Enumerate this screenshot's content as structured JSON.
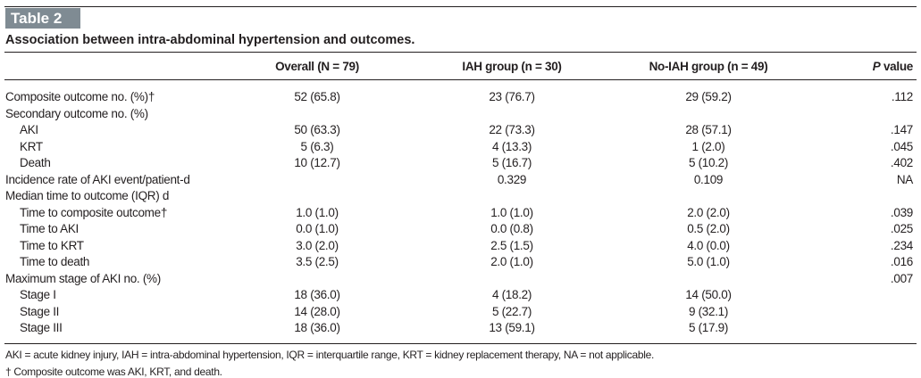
{
  "table_label": "Table 2",
  "title": "Association between intra-abdominal hypertension and outcomes.",
  "columns": {
    "overall": "Overall (N = 79)",
    "iah": "IAH group (n = 30)",
    "no_iah": "No-IAH group (n = 49)",
    "p_italic": "P",
    "p_rest": " value"
  },
  "rows": [
    {
      "label": "Composite outcome no. (%)†",
      "indent": false,
      "overall": "52 (65.8)",
      "iah": "23 (76.7)",
      "no_iah": "29 (59.2)",
      "p": ".112"
    },
    {
      "label": "Secondary outcome no. (%)",
      "indent": false,
      "overall": "",
      "iah": "",
      "no_iah": "",
      "p": ""
    },
    {
      "label": "AKI",
      "indent": true,
      "overall": "50 (63.3)",
      "iah": "22 (73.3)",
      "no_iah": "28 (57.1)",
      "p": ".147"
    },
    {
      "label": "KRT",
      "indent": true,
      "overall": "5 (6.3)",
      "iah": "4 (13.3)",
      "no_iah": "1 (2.0)",
      "p": ".045"
    },
    {
      "label": "Death",
      "indent": true,
      "overall": "10 (12.7)",
      "iah": "5 (16.7)",
      "no_iah": "5 (10.2)",
      "p": ".402"
    },
    {
      "label": "Incidence rate of AKI event/patient-d",
      "indent": false,
      "overall": "",
      "iah": "0.329",
      "no_iah": "0.109",
      "p": "NA"
    },
    {
      "label": "Median time to outcome (IQR) d",
      "indent": false,
      "overall": "",
      "iah": "",
      "no_iah": "",
      "p": ""
    },
    {
      "label": "Time to composite outcome†",
      "indent": true,
      "overall": "1.0 (1.0)",
      "iah": "1.0 (1.0)",
      "no_iah": "2.0 (2.0)",
      "p": ".039"
    },
    {
      "label": "Time to AKI",
      "indent": true,
      "overall": "0.0 (1.0)",
      "iah": "0.0 (0.8)",
      "no_iah": "0.5 (2.0)",
      "p": ".025"
    },
    {
      "label": "Time to KRT",
      "indent": true,
      "overall": "3.0 (2.0)",
      "iah": "2.5 (1.5)",
      "no_iah": "4.0 (0.0)",
      "p": ".234"
    },
    {
      "label": "Time to death",
      "indent": true,
      "overall": "3.5 (2.5)",
      "iah": "2.0 (1.0)",
      "no_iah": "5.0 (1.0)",
      "p": ".016"
    },
    {
      "label": "Maximum stage of AKI no. (%)",
      "indent": false,
      "overall": "",
      "iah": "",
      "no_iah": "",
      "p": ".007"
    },
    {
      "label": "Stage I",
      "indent": true,
      "overall": "18 (36.0)",
      "iah": "4 (18.2)",
      "no_iah": "14 (50.0)",
      "p": ""
    },
    {
      "label": "Stage II",
      "indent": true,
      "overall": "14 (28.0)",
      "iah": "5 (22.7)",
      "no_iah": "9 (32.1)",
      "p": ""
    },
    {
      "label": "Stage III",
      "indent": true,
      "overall": "18 (36.0)",
      "iah": "13 (59.1)",
      "no_iah": "5 (17.9)",
      "p": ""
    }
  ],
  "footnotes": [
    "AKI = acute kidney injury, IAH = intra-abdominal hypertension, IQR = interquartile range, KRT = kidney replacement therapy, NA = not applicable.",
    "† Composite outcome was AKI, KRT, and death."
  ]
}
